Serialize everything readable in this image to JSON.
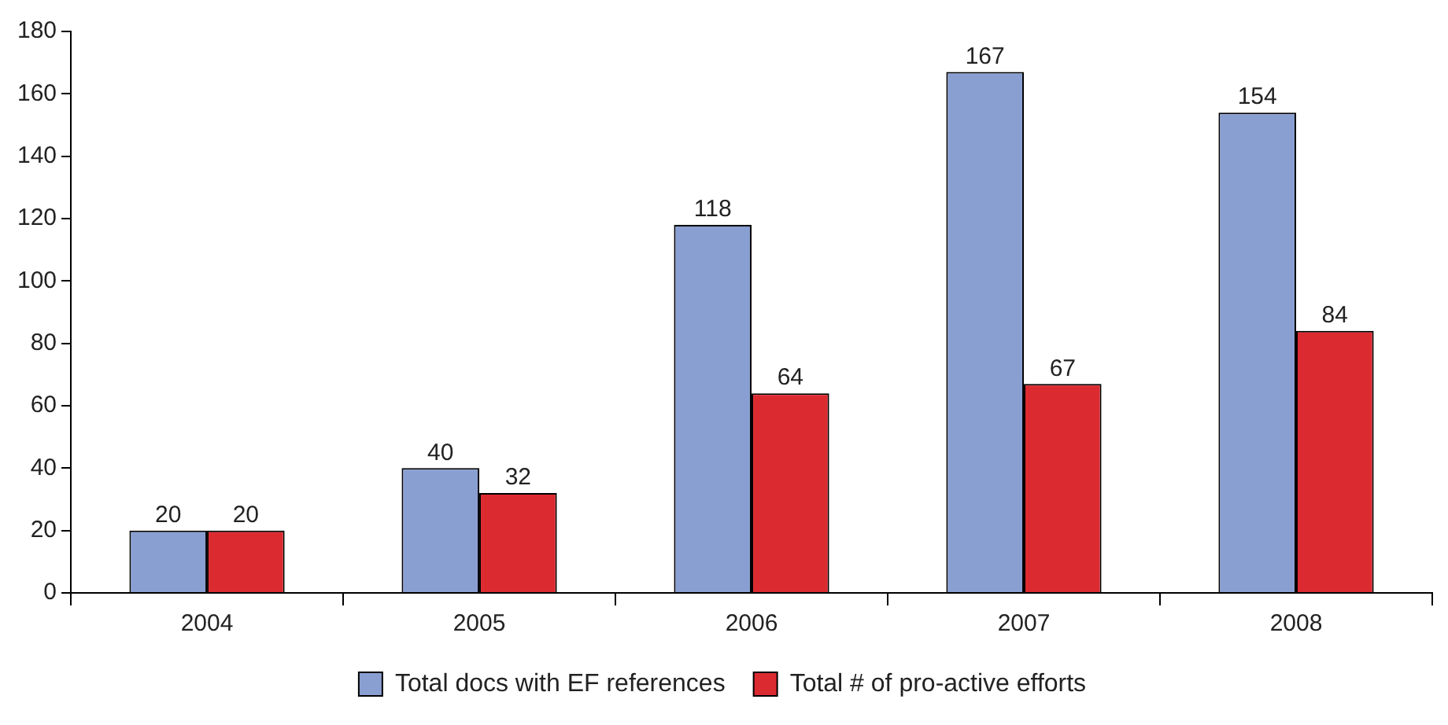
{
  "chart_data": {
    "type": "bar",
    "categories": [
      "2004",
      "2005",
      "2006",
      "2007",
      "2008"
    ],
    "series": [
      {
        "name": "Total docs with EF references",
        "color": "#8a9fd1",
        "values": [
          20,
          40,
          118,
          167,
          154
        ]
      },
      {
        "name": "Total # of pro-active efforts",
        "color": "#dc2a31",
        "values": [
          20,
          32,
          64,
          67,
          84
        ]
      }
    ],
    "ylim": [
      0,
      180
    ],
    "yticks": [
      0,
      20,
      40,
      60,
      80,
      100,
      120,
      140,
      160,
      180
    ],
    "grid": false,
    "legend": "bottom",
    "data_labels": true
  }
}
